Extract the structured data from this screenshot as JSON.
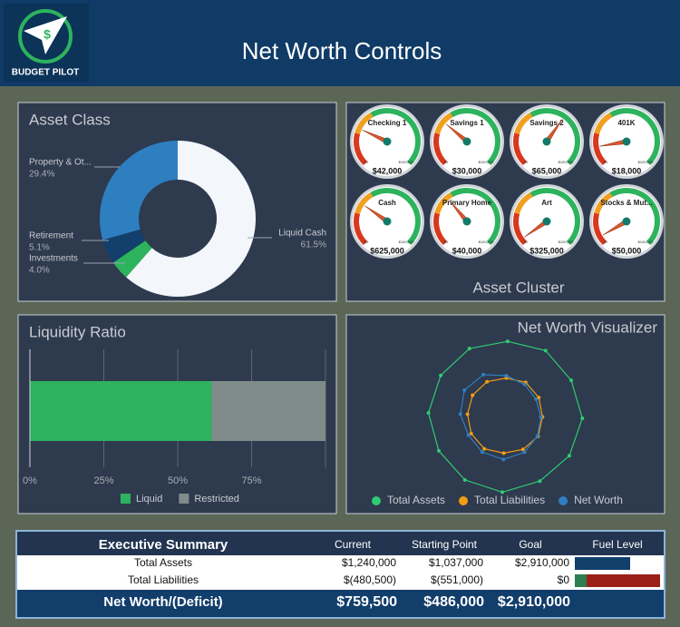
{
  "header": {
    "title": "Net Worth Controls",
    "logo_text": "BUDGET PILOT"
  },
  "chart_data": [
    {
      "type": "pie",
      "title": "Asset Class",
      "donut": true,
      "categories": [
        "Liquid Cash",
        "Investments",
        "Retirement",
        "Property & Ot..."
      ],
      "values": [
        61.5,
        4.0,
        5.1,
        29.4
      ],
      "value_labels": [
        "61.5%",
        "4.0%",
        "5.1%",
        "29.4%"
      ],
      "colors": [
        "#f3f6fb",
        "#2db35d",
        "#123f6b",
        "#2e7fc0"
      ]
    },
    {
      "type": "bar",
      "orientation": "horizontal",
      "stacked": true,
      "title": "Liquidity Ratio",
      "categories": [
        null
      ],
      "series": [
        {
          "name": "Liquid",
          "color": "#2db35d",
          "values": [
            61.5
          ]
        },
        {
          "name": "Restricted",
          "color": "#7f8c8a",
          "values": [
            38.5
          ]
        }
      ],
      "xlim": [
        0,
        100
      ],
      "xticks": [
        {
          "value": 0,
          "label": "0%"
        },
        {
          "value": 25,
          "label": "25%"
        },
        {
          "value": 50,
          "label": "50%"
        },
        {
          "value": 75,
          "label": "75%"
        }
      ],
      "grid": true
    },
    {
      "type": "radar",
      "title": "Net Worth Visualizer",
      "categories": [
        null,
        null,
        null,
        null,
        null,
        null,
        null,
        null,
        null,
        null,
        null,
        null
      ],
      "rlim": [
        0,
        100
      ],
      "series": [
        {
          "name": "Total Assets",
          "color": "#2ecc71",
          "values": [
            95,
            93,
            96,
            94,
            97,
            95,
            93,
            96,
            95,
            94,
            96,
            95
          ]
        },
        {
          "name": "Total Liabilities",
          "color": "#f39c12",
          "values": [
            48,
            47,
            49,
            48,
            47,
            49,
            48,
            47,
            49,
            48,
            47,
            48
          ]
        },
        {
          "name": "Net Worth",
          "color": "#2f7fc1",
          "values": [
            58,
            50,
            46,
            44,
            45,
            48,
            52,
            55,
            54,
            52,
            56,
            60
          ]
        }
      ]
    }
  ],
  "asset_cluster": {
    "title": "Asset Cluster",
    "scale_min": "$0",
    "scale_max": "$100,000",
    "gauges": [
      {
        "label": "Checking 1",
        "value": "$42,000"
      },
      {
        "label": "Savings 1",
        "value": "$30,000"
      },
      {
        "label": "Savings 2",
        "value": "$65,000"
      },
      {
        "label": "401K",
        "value": "$18,000"
      },
      {
        "label": "Cash",
        "value": "$625,000"
      },
      {
        "label": "Primary Home",
        "value": "$40,000"
      },
      {
        "label": "Art",
        "value": "$325,000"
      },
      {
        "label": "Stocks & Mut...",
        "value": "$50,000"
      }
    ]
  },
  "summary": {
    "header": [
      "Executive Summary",
      "Current",
      "Starting Point",
      "Goal",
      "Fuel Level"
    ],
    "rows": [
      [
        "Total Assets",
        "$1,240,000",
        "$1,037,000",
        "$2,910,000"
      ],
      [
        "Total Liabilities",
        "$(480,500)",
        "$(551,000)",
        "$0"
      ]
    ],
    "footer": [
      "Net Worth/(Deficit)",
      "$759,500",
      "$486,000",
      "$2,910,000"
    ]
  }
}
